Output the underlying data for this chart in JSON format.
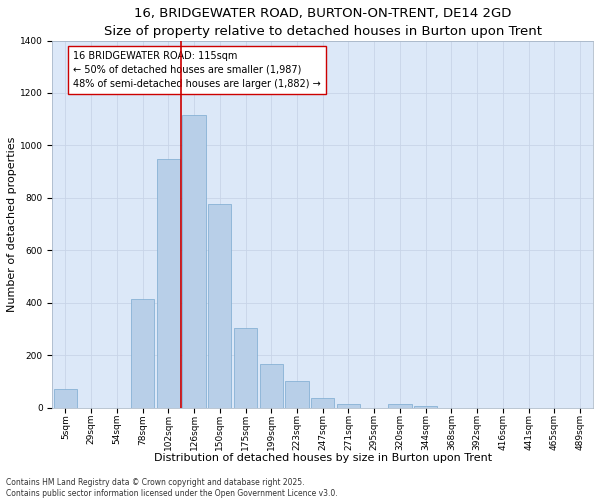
{
  "title": "16, BRIDGEWATER ROAD, BURTON-ON-TRENT, DE14 2GD",
  "subtitle": "Size of property relative to detached houses in Burton upon Trent",
  "xlabel": "Distribution of detached houses by size in Burton upon Trent",
  "ylabel": "Number of detached properties",
  "categories": [
    "5sqm",
    "29sqm",
    "54sqm",
    "78sqm",
    "102sqm",
    "126sqm",
    "150sqm",
    "175sqm",
    "199sqm",
    "223sqm",
    "247sqm",
    "271sqm",
    "295sqm",
    "320sqm",
    "344sqm",
    "368sqm",
    "392sqm",
    "416sqm",
    "441sqm",
    "465sqm",
    "489sqm"
  ],
  "values": [
    70,
    0,
    0,
    415,
    950,
    1115,
    775,
    305,
    165,
    100,
    35,
    15,
    0,
    15,
    5,
    0,
    0,
    0,
    0,
    0,
    0
  ],
  "bar_color": "#b8cfe8",
  "bar_edge_color": "#7aaad0",
  "vline_color": "#cc0000",
  "annotation_text": "16 BRIDGEWATER ROAD: 115sqm\n← 50% of detached houses are smaller (1,987)\n48% of semi-detached houses are larger (1,882) →",
  "annotation_box_color": "#ffffff",
  "annotation_box_edge_color": "#cc0000",
  "ylim": [
    0,
    1400
  ],
  "yticks": [
    0,
    200,
    400,
    600,
    800,
    1000,
    1200,
    1400
  ],
  "grid_color": "#c8d4e8",
  "background_color": "#dce8f8",
  "fig_background": "#ffffff",
  "footer_text": "Contains HM Land Registry data © Crown copyright and database right 2025.\nContains public sector information licensed under the Open Government Licence v3.0.",
  "title_fontsize": 9.5,
  "xlabel_fontsize": 8,
  "ylabel_fontsize": 8,
  "tick_fontsize": 6.5,
  "annotation_fontsize": 7,
  "footer_fontsize": 5.5,
  "vline_index": 4.5
}
